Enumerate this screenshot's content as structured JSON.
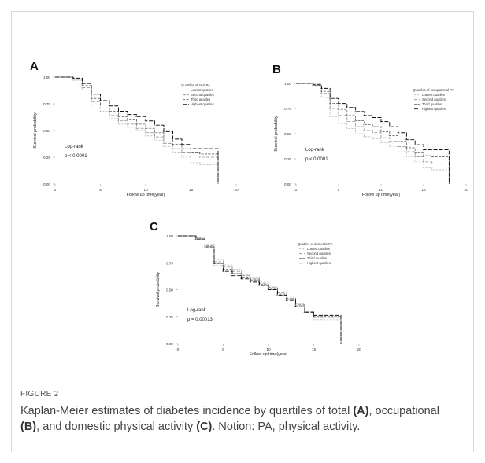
{
  "figure_label": "FIGURE 2",
  "caption": {
    "t1": "Kaplan-Meier estimates of diabetes incidence by quartiles of total ",
    "a": "(A)",
    "t2": ", occupational ",
    "b": "(B)",
    "t3": ", and domestic physical activity ",
    "c": "(C)",
    "t4": ". Notion: PA, physical activity."
  },
  "colors": {
    "lowest": "#b4b4b4",
    "second": "#8c8c8c",
    "third": "#5e5e5e",
    "highest": "#111111"
  },
  "chart_data": [
    {
      "type": "line",
      "panel": "A",
      "xlabel": "Follow up time(year)",
      "ylabel": "Survival probability",
      "xlim": [
        0,
        20
      ],
      "ylim": [
        0,
        1
      ],
      "xticks": [
        "0",
        "5",
        "10",
        "15",
        "20"
      ],
      "yticks": [
        "0.00",
        "0.25",
        "0.50",
        "0.75",
        "1.00"
      ],
      "legend_title": "Quartiles of total PA",
      "annotation": "Log-rank",
      "pvalue": "p < 0.0001",
      "x": [
        0,
        1,
        2,
        3,
        4,
        5,
        6,
        7,
        8,
        9,
        10,
        11,
        12,
        13,
        14,
        15,
        16,
        17,
        18
      ],
      "series": [
        {
          "name": "Lowest quatiles",
          "values": [
            1.0,
            1.0,
            0.97,
            0.88,
            0.74,
            0.68,
            0.61,
            0.56,
            0.53,
            0.5,
            0.45,
            0.41,
            0.35,
            0.29,
            0.25,
            0.2,
            0.18,
            0.18,
            0.0
          ]
        },
        {
          "name": "Second quatiles",
          "values": [
            1.0,
            1.0,
            0.98,
            0.9,
            0.77,
            0.71,
            0.64,
            0.59,
            0.56,
            0.52,
            0.48,
            0.44,
            0.38,
            0.33,
            0.29,
            0.26,
            0.25,
            0.25,
            0.0
          ]
        },
        {
          "name": "Third quatiles",
          "values": [
            1.0,
            1.0,
            0.98,
            0.92,
            0.8,
            0.74,
            0.68,
            0.63,
            0.6,
            0.56,
            0.52,
            0.48,
            0.43,
            0.37,
            0.33,
            0.29,
            0.28,
            0.28,
            0.0
          ]
        },
        {
          "name": "Highest quatiles",
          "values": [
            1.0,
            1.0,
            0.99,
            0.94,
            0.84,
            0.78,
            0.73,
            0.68,
            0.65,
            0.63,
            0.59,
            0.55,
            0.49,
            0.42,
            0.37,
            0.33,
            0.33,
            0.33,
            0.0
          ]
        }
      ]
    },
    {
      "type": "line",
      "panel": "B",
      "xlabel": "Follow up time(year)",
      "ylabel": "Survival probability",
      "xlim": [
        0,
        20
      ],
      "ylim": [
        0,
        1
      ],
      "xticks": [
        "0",
        "5",
        "10",
        "15",
        "20"
      ],
      "yticks": [
        "0.00",
        "0.25",
        "0.50",
        "0.75",
        "1.00"
      ],
      "legend_title": "Quartiles of occupational PA",
      "annotation": "Log-rank",
      "pvalue": "p < 0.0001",
      "x": [
        0,
        1,
        2,
        3,
        4,
        5,
        6,
        7,
        8,
        9,
        10,
        11,
        12,
        13,
        14,
        15,
        16,
        17,
        18
      ],
      "series": [
        {
          "name": "Lowest quatiles",
          "values": [
            1.0,
            1.0,
            0.97,
            0.86,
            0.67,
            0.6,
            0.55,
            0.5,
            0.47,
            0.45,
            0.41,
            0.37,
            0.32,
            0.27,
            0.22,
            0.16,
            0.14,
            0.14,
            0.0
          ]
        },
        {
          "name": "Second quatiles",
          "values": [
            1.0,
            1.0,
            0.98,
            0.9,
            0.75,
            0.68,
            0.62,
            0.57,
            0.53,
            0.51,
            0.46,
            0.42,
            0.37,
            0.32,
            0.27,
            0.22,
            0.2,
            0.2,
            0.0
          ]
        },
        {
          "name": "Third quatiles",
          "values": [
            1.0,
            1.0,
            0.98,
            0.92,
            0.8,
            0.74,
            0.68,
            0.63,
            0.59,
            0.57,
            0.52,
            0.48,
            0.42,
            0.36,
            0.31,
            0.28,
            0.27,
            0.27,
            0.0
          ]
        },
        {
          "name": "Highest quatiles",
          "values": [
            1.0,
            1.0,
            0.99,
            0.95,
            0.85,
            0.8,
            0.76,
            0.72,
            0.68,
            0.66,
            0.62,
            0.57,
            0.51,
            0.44,
            0.39,
            0.34,
            0.34,
            0.34,
            0.0
          ]
        }
      ]
    },
    {
      "type": "line",
      "panel": "C",
      "xlabel": "Follow up time(year)",
      "ylabel": "Survival probability",
      "xlim": [
        0,
        20
      ],
      "ylim": [
        0,
        1
      ],
      "xticks": [
        "0",
        "5",
        "10",
        "15",
        "20"
      ],
      "yticks": [
        "0.00",
        "0.25",
        "0.50",
        "0.75",
        "1.00"
      ],
      "legend_title": "Quatiles of domestic PA",
      "annotation": "Log-rank",
      "pvalue": "p = 0.00013",
      "x": [
        0,
        1,
        2,
        3,
        4,
        5,
        6,
        7,
        8,
        9,
        10,
        11,
        12,
        13,
        14,
        15,
        16,
        17,
        18
      ],
      "series": [
        {
          "name": "Lowest quatiles",
          "values": [
            1.0,
            1.0,
            0.98,
            0.92,
            0.78,
            0.73,
            0.69,
            0.64,
            0.61,
            0.57,
            0.53,
            0.48,
            0.43,
            0.37,
            0.3,
            0.22,
            0.22,
            0.22,
            0.0
          ]
        },
        {
          "name": "Second quatiles",
          "values": [
            1.0,
            1.0,
            0.98,
            0.91,
            0.76,
            0.71,
            0.67,
            0.63,
            0.6,
            0.56,
            0.52,
            0.47,
            0.42,
            0.36,
            0.3,
            0.24,
            0.24,
            0.24,
            0.0
          ]
        },
        {
          "name": "Third quatiles",
          "values": [
            1.0,
            1.0,
            0.97,
            0.9,
            0.74,
            0.69,
            0.65,
            0.61,
            0.59,
            0.55,
            0.51,
            0.46,
            0.41,
            0.35,
            0.29,
            0.25,
            0.25,
            0.25,
            0.0
          ]
        },
        {
          "name": "Highest quatiles",
          "values": [
            1.0,
            1.0,
            0.97,
            0.89,
            0.72,
            0.67,
            0.63,
            0.6,
            0.57,
            0.54,
            0.5,
            0.45,
            0.4,
            0.34,
            0.29,
            0.26,
            0.26,
            0.26,
            0.0
          ]
        }
      ]
    }
  ]
}
